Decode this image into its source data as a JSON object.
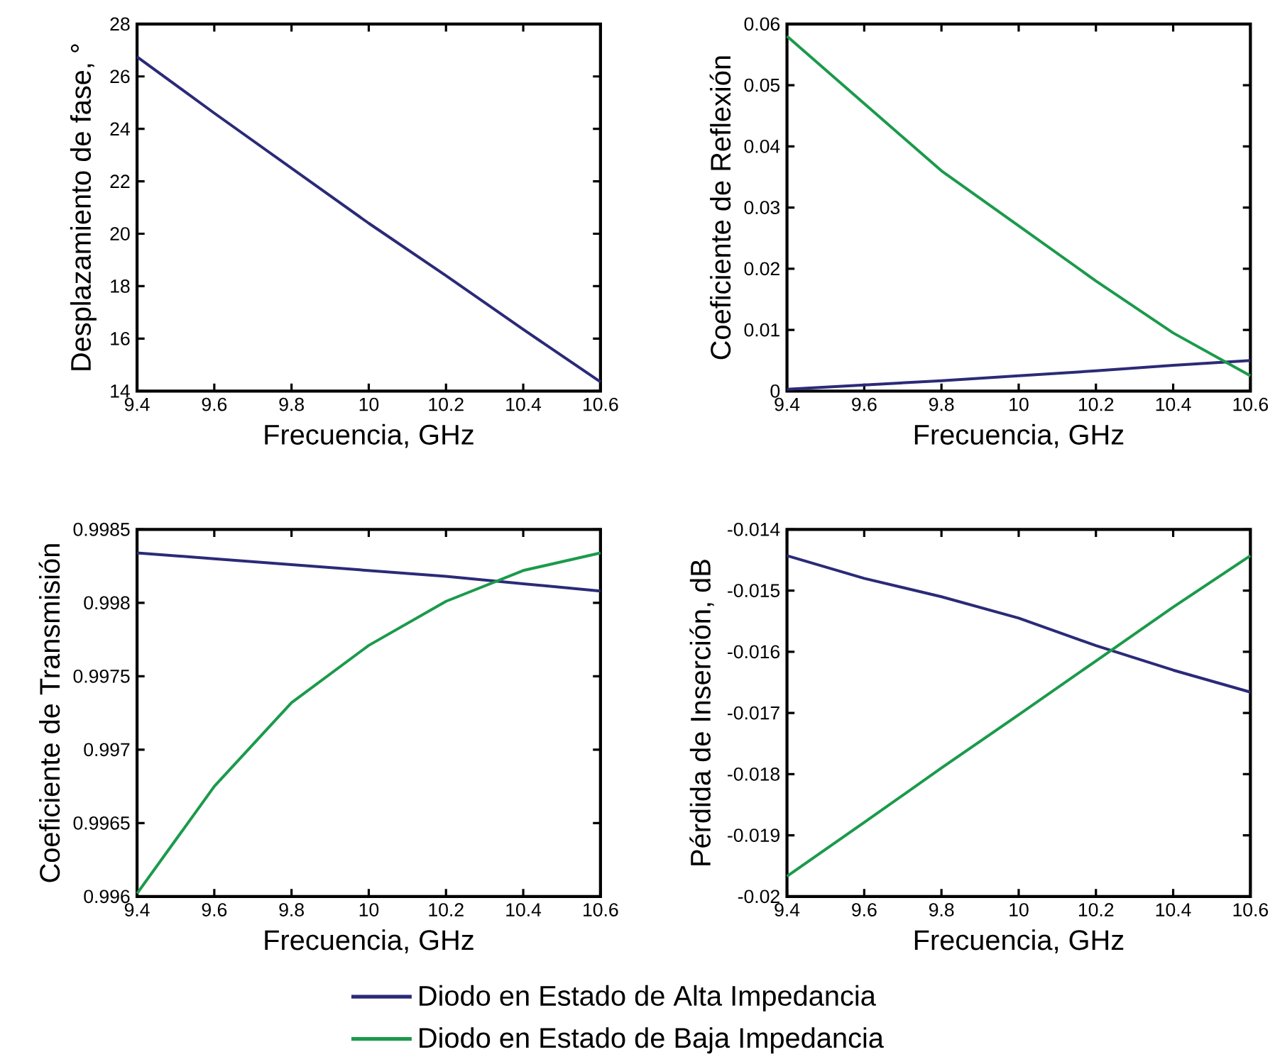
{
  "chart_data": [
    {
      "type": "line",
      "xlabel": "Frecuencia, GHz",
      "ylabel": "Desplazamiento de fase, °",
      "xlim": [
        9.4,
        10.6
      ],
      "xticks": [
        9.4,
        9.6,
        9.8,
        10,
        10.2,
        10.4,
        10.6
      ],
      "ylim": [
        14,
        28
      ],
      "yticks": [
        14,
        16,
        18,
        20,
        22,
        24,
        26,
        28
      ],
      "x": [
        9.4,
        9.6,
        9.8,
        10,
        10.2,
        10.4,
        10.6
      ],
      "series": [
        {
          "color": "#2b2a78",
          "values": [
            26.75,
            24.6,
            22.5,
            20.4,
            18.4,
            16.35,
            14.35
          ]
        }
      ]
    },
    {
      "type": "line",
      "xlabel": "Frecuencia, GHz",
      "ylabel": "Coeficiente de Reflexión",
      "xlim": [
        9.4,
        10.6
      ],
      "xticks": [
        9.4,
        9.6,
        9.8,
        10,
        10.2,
        10.4,
        10.6
      ],
      "ylim": [
        0,
        0.06
      ],
      "yticks": [
        0,
        0.01,
        0.02,
        0.03,
        0.04,
        0.05,
        0.06
      ],
      "x": [
        9.4,
        9.6,
        9.8,
        10,
        10.2,
        10.4,
        10.6
      ],
      "series": [
        {
          "color": "#2b2a78",
          "values": [
            0.0003,
            0.001,
            0.0017,
            0.0025,
            0.0033,
            0.0042,
            0.005
          ]
        },
        {
          "color": "#1b9a4b",
          "values": [
            0.058,
            0.047,
            0.036,
            0.027,
            0.018,
            0.0095,
            0.0025
          ]
        }
      ]
    },
    {
      "type": "line",
      "xlabel": "Frecuencia, GHz",
      "ylabel": "Coeficiente de Transmisión",
      "xlim": [
        9.4,
        10.6
      ],
      "xticks": [
        9.4,
        9.6,
        9.8,
        10,
        10.2,
        10.4,
        10.6
      ],
      "ylim": [
        0.996,
        0.9985
      ],
      "yticks": [
        0.996,
        0.9965,
        0.997,
        0.9975,
        0.998,
        0.9985
      ],
      "x": [
        9.4,
        9.6,
        9.8,
        10,
        10.2,
        10.4,
        10.6
      ],
      "series": [
        {
          "color": "#2b2a78",
          "values": [
            0.99834,
            0.9983,
            0.99826,
            0.99822,
            0.99818,
            0.99813,
            0.99808
          ]
        },
        {
          "color": "#1b9a4b",
          "values": [
            0.99602,
            0.99675,
            0.99732,
            0.99771,
            0.99801,
            0.99822,
            0.99834
          ]
        }
      ]
    },
    {
      "type": "line",
      "xlabel": "Frecuencia, GHz",
      "ylabel": "Pérdida de Inserción, dB",
      "xlim": [
        9.4,
        10.6
      ],
      "xticks": [
        9.4,
        9.6,
        9.8,
        10,
        10.2,
        10.4,
        10.6
      ],
      "ylim": [
        -0.02,
        -0.014
      ],
      "yticks": [
        -0.02,
        -0.019,
        -0.018,
        -0.017,
        -0.016,
        -0.015,
        -0.014
      ],
      "x": [
        9.4,
        9.6,
        9.8,
        10,
        10.2,
        10.4,
        10.6
      ],
      "legend": "bottom",
      "series": [
        {
          "name": "Diodo en Estado de Alta Impedancia",
          "color": "#2b2a78",
          "values": [
            -0.01443,
            -0.0148,
            -0.0151,
            -0.01545,
            -0.0159,
            -0.0163,
            -0.01666
          ]
        },
        {
          "name": "Diodo en Estado de Baja Impedancia",
          "color": "#1b9a4b",
          "values": [
            -0.01967,
            -0.01879,
            -0.0179,
            -0.01703,
            -0.01615,
            -0.01527,
            -0.01443
          ]
        }
      ]
    }
  ]
}
